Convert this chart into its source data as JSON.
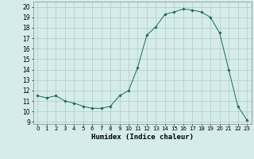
{
  "title": "",
  "xlabel": "Humidex (Indice chaleur)",
  "ylabel": "",
  "background_color": "#d5ecea",
  "line_color": "#1a6b5a",
  "marker_color": "#1a6b5a",
  "grid_color": "#aacccc",
  "xlim": [
    -0.5,
    23.5
  ],
  "ylim": [
    8.8,
    20.5
  ],
  "yticks": [
    9,
    10,
    11,
    12,
    13,
    14,
    15,
    16,
    17,
    18,
    19,
    20
  ],
  "xticks": [
    0,
    1,
    2,
    3,
    4,
    5,
    6,
    7,
    8,
    9,
    10,
    11,
    12,
    13,
    14,
    15,
    16,
    17,
    18,
    19,
    20,
    21,
    22,
    23
  ],
  "x": [
    0,
    1,
    2,
    3,
    4,
    5,
    6,
    7,
    8,
    9,
    10,
    11,
    12,
    13,
    14,
    15,
    16,
    17,
    18,
    19,
    20,
    21,
    22,
    23
  ],
  "y": [
    11.5,
    11.3,
    11.5,
    11.0,
    10.8,
    10.5,
    10.3,
    10.3,
    10.5,
    11.5,
    12.0,
    14.2,
    17.3,
    18.1,
    19.3,
    19.5,
    19.8,
    19.7,
    19.5,
    19.0,
    17.5,
    14.0,
    10.5,
    9.2
  ]
}
